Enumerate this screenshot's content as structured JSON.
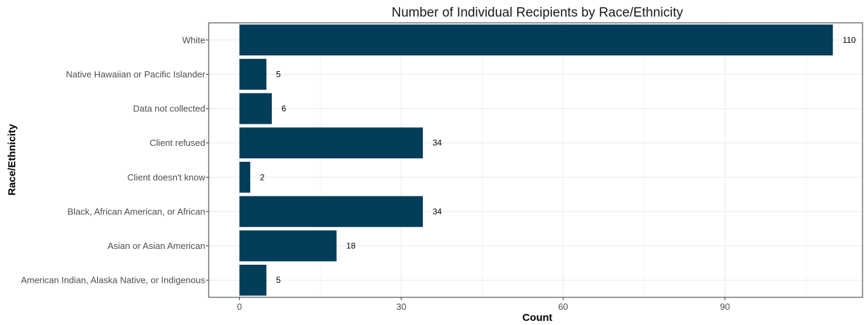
{
  "chart_data": {
    "type": "bar",
    "orientation": "horizontal",
    "title": "Number of Individual Recipients by Race/Ethnicity",
    "xlabel": "Count",
    "ylabel": "Race/Ethnicity",
    "categories": [
      "White",
      "Native Hawaiian or Pacific Islander",
      "Data not collected",
      "Client refused",
      "Client doesn't know",
      "Black, African American, or African",
      "Asian or Asian American",
      "American Indian, Alaska Native, or Indigenous"
    ],
    "values": [
      110,
      5,
      6,
      34,
      2,
      34,
      18,
      5
    ],
    "data_labels": [
      "110",
      "5",
      "6",
      "34",
      "2",
      "34",
      "18",
      "5"
    ],
    "xlim": [
      -5.7,
      115.5
    ],
    "xticks": [
      0,
      30,
      60,
      90
    ],
    "xtick_labels": [
      "0",
      "30",
      "60",
      "90"
    ],
    "grid": true,
    "legend": "none",
    "colors": {
      "bar": "#033d59",
      "grid": "#ebebeb",
      "panel_border": "#333333",
      "text": "#1a1a1a"
    }
  }
}
